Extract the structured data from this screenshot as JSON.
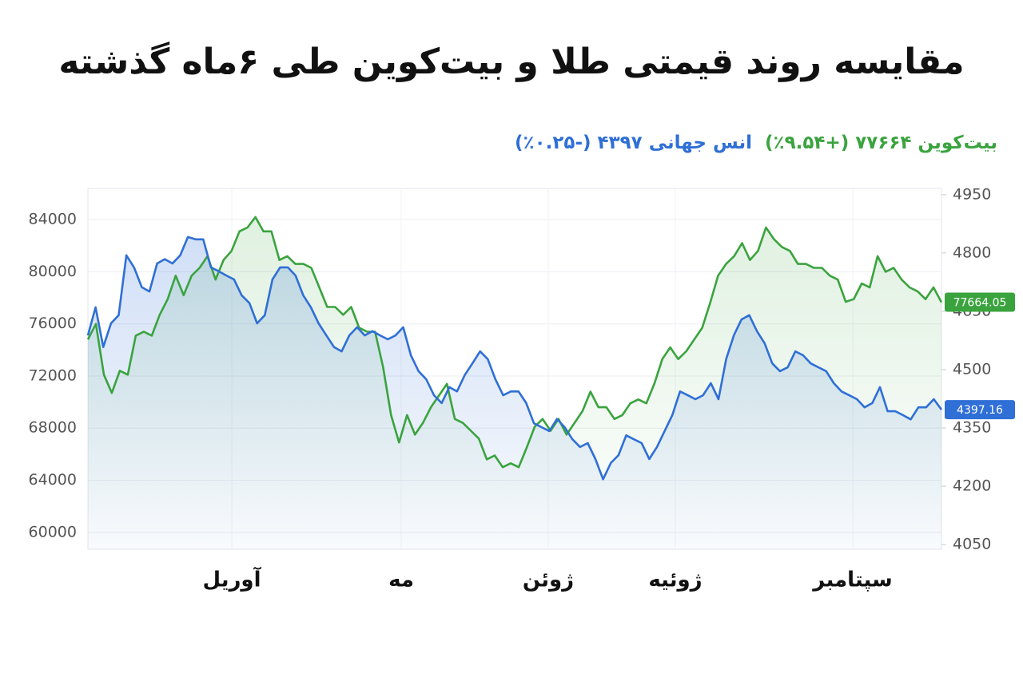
{
  "chart_data": {
    "type": "line",
    "title": "مقایسه روند قیمتی طلا و بیت‌کوین طی ۶ماه گذشته",
    "x_labels": [
      "آوریل",
      "مه",
      "ژوئن",
      "ژوئیه",
      "سپتامبر"
    ],
    "ylim": [
      58700,
      86400
    ],
    "yticks": [
      60000,
      64000,
      68000,
      72000,
      76000,
      80000,
      84000
    ],
    "y2lim": [
      4038,
      4966
    ],
    "y2ticks": [
      4050,
      4200,
      4350,
      4500,
      4650,
      4800,
      4950
    ],
    "grid": true,
    "series": [
      {
        "name": "بیت‌کوین",
        "summary": "۷۷۶۶۴ (+۹.۵۴٪)",
        "color": "#3aa33e",
        "axis": "y",
        "values": [
          74800,
          76000,
          72100,
          70700,
          72400,
          72100,
          75100,
          75400,
          75100,
          76700,
          77900,
          79700,
          78200,
          79700,
          80300,
          81200,
          79400,
          80900,
          81600,
          83100,
          83400,
          84200,
          83100,
          83100,
          80900,
          81200,
          80600,
          80600,
          80300,
          78800,
          77300,
          77300,
          76700,
          77300,
          75700,
          75400,
          75400,
          72700,
          69000,
          66900,
          69000,
          67500,
          68400,
          69600,
          70500,
          71400,
          68700,
          68400,
          67800,
          67200,
          65600,
          65900,
          65000,
          65300,
          65000,
          66500,
          68100,
          68700,
          67800,
          68700,
          67500,
          68400,
          69300,
          70800,
          69600,
          69600,
          68700,
          69000,
          69900,
          70200,
          69900,
          71400,
          73300,
          74200,
          73300,
          73900,
          74800,
          75700,
          77600,
          79700,
          80600,
          81200,
          82200,
          80900,
          81600,
          83400,
          82500,
          81900,
          81600,
          80600,
          80600,
          80300,
          80300,
          79700,
          79400,
          77700,
          77900,
          79100,
          78800,
          81200,
          80000,
          80300,
          79400,
          78800,
          78500,
          77900,
          78800,
          77664.05
        ]
      },
      {
        "name": "انس جهانی",
        "summary": "۴۳۹۷ (-۰.۲۵٪)",
        "color": "#2f6fd6",
        "axis": "y2",
        "values": [
          4588,
          4660,
          4558,
          4619,
          4640,
          4794,
          4763,
          4712,
          4701,
          4773,
          4784,
          4773,
          4794,
          4841,
          4835,
          4835,
          4763,
          4753,
          4742,
          4732,
          4691,
          4671,
          4619,
          4640,
          4732,
          4763,
          4763,
          4742,
          4691,
          4660,
          4619,
          4588,
          4558,
          4547,
          4588,
          4609,
          4588,
          4599,
          4588,
          4578,
          4588,
          4609,
          4537,
          4496,
          4475,
          4434,
          4414,
          4455,
          4444,
          4486,
          4516,
          4547,
          4527,
          4475,
          4434,
          4444,
          4444,
          4414,
          4362,
          4352,
          4342,
          4373,
          4352,
          4321,
          4301,
          4311,
          4270,
          4218,
          4260,
          4280,
          4331,
          4321,
          4311,
          4270,
          4301,
          4342,
          4383,
          4444,
          4434,
          4424,
          4434,
          4465,
          4424,
          4527,
          4588,
          4629,
          4640,
          4599,
          4568,
          4516,
          4496,
          4506,
          4547,
          4537,
          4516,
          4506,
          4496,
          4465,
          4444,
          4434,
          4424,
          4403,
          4414,
          4455,
          4393,
          4393,
          4383,
          4372,
          4403,
          4403,
          4424,
          4397.16
        ]
      }
    ]
  }
}
